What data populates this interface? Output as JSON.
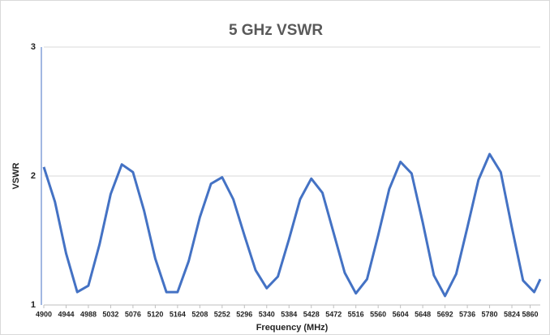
{
  "chart_data": {
    "type": "line",
    "title": "5 GHz VSWR",
    "x_label": "Frequency (MHz)",
    "y_label": "VSWR",
    "x": [
      4900,
      4922,
      4944,
      4966,
      4988,
      5010,
      5032,
      5054,
      5076,
      5098,
      5120,
      5142,
      5164,
      5186,
      5208,
      5230,
      5252,
      5274,
      5296,
      5318,
      5340,
      5362,
      5384,
      5406,
      5428,
      5450,
      5472,
      5494,
      5516,
      5538,
      5560,
      5582,
      5604,
      5626,
      5648,
      5670,
      5692,
      5714,
      5736,
      5758,
      5780,
      5802,
      5824,
      5846,
      5868,
      5880
    ],
    "series": [
      {
        "name": "VSWR",
        "color": "#4472c4",
        "values": [
          2.07,
          1.8,
          1.4,
          1.1,
          1.15,
          1.47,
          1.86,
          2.09,
          2.03,
          1.73,
          1.36,
          1.1,
          1.1,
          1.34,
          1.68,
          1.94,
          1.99,
          1.82,
          1.54,
          1.27,
          1.13,
          1.22,
          1.51,
          1.82,
          1.98,
          1.87,
          1.56,
          1.25,
          1.09,
          1.2,
          1.54,
          1.9,
          2.11,
          2.02,
          1.64,
          1.23,
          1.07,
          1.24,
          1.6,
          1.97,
          2.17,
          2.03,
          1.6,
          1.19,
          1.1,
          1.2
        ]
      }
    ],
    "xlim": [
      4900,
      5880
    ],
    "xticks": [
      4900,
      4944,
      4988,
      5032,
      5076,
      5120,
      5164,
      5208,
      5252,
      5296,
      5340,
      5384,
      5428,
      5472,
      5516,
      5560,
      5604,
      5648,
      5692,
      5736,
      5780,
      5824,
      5860
    ],
    "ylim": [
      1,
      3
    ],
    "yticks": [
      1,
      2,
      3
    ],
    "grid": true
  }
}
